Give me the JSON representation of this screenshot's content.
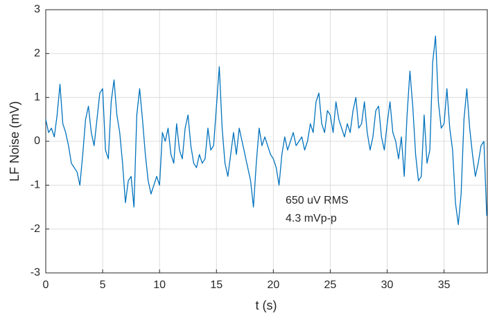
{
  "chart_data": {
    "type": "line",
    "xlabel": "t (s)",
    "ylabel": "LF Noise (mV)",
    "annotations": [
      "650 uV RMS",
      "4.3 mVp-p"
    ],
    "x": [
      0,
      0.25,
      0.5,
      0.75,
      1,
      1.25,
      1.5,
      1.75,
      2,
      2.25,
      2.5,
      2.75,
      3,
      3.25,
      3.5,
      3.75,
      4,
      4.25,
      4.5,
      4.75,
      5,
      5.25,
      5.5,
      5.75,
      6,
      6.25,
      6.5,
      6.75,
      7,
      7.25,
      7.5,
      7.75,
      8,
      8.25,
      8.5,
      8.75,
      9,
      9.25,
      9.5,
      9.75,
      10,
      10.25,
      10.5,
      10.75,
      11,
      11.25,
      11.5,
      11.75,
      12,
      12.25,
      12.5,
      12.75,
      13,
      13.25,
      13.5,
      13.75,
      14,
      14.25,
      14.5,
      14.75,
      15,
      15.25,
      15.5,
      15.75,
      16,
      16.25,
      16.5,
      16.75,
      17,
      17.25,
      17.5,
      17.75,
      18,
      18.25,
      18.5,
      18.75,
      19,
      19.25,
      19.5,
      19.75,
      20,
      20.25,
      20.5,
      20.75,
      21,
      21.25,
      21.5,
      21.75,
      22,
      22.25,
      22.5,
      22.75,
      23,
      23.25,
      23.5,
      23.75,
      24,
      24.25,
      24.5,
      24.75,
      25,
      25.25,
      25.5,
      25.75,
      26,
      26.25,
      26.5,
      26.75,
      27,
      27.25,
      27.5,
      27.75,
      28,
      28.25,
      28.5,
      28.75,
      29,
      29.25,
      29.5,
      29.75,
      30,
      30.25,
      30.5,
      30.75,
      31,
      31.25,
      31.5,
      31.75,
      32,
      32.25,
      32.5,
      32.75,
      33,
      33.25,
      33.5,
      33.75,
      34,
      34.25,
      34.5,
      34.75,
      35,
      35.25,
      35.5,
      35.75,
      36,
      36.25,
      36.5,
      36.75,
      37,
      37.25,
      37.5,
      37.75,
      38,
      38.25,
      38.5,
      38.75
    ],
    "series": [
      {
        "color": "#0072bd",
        "values": [
          0.5,
          0.2,
          0.3,
          0.1,
          0.6,
          1.3,
          0.4,
          0.2,
          -0.1,
          -0.5,
          -0.6,
          -0.7,
          -1.0,
          -0.3,
          0.5,
          0.8,
          0.2,
          -0.1,
          0.5,
          1.1,
          1.2,
          -0.2,
          -0.4,
          0.9,
          1.4,
          0.6,
          0.2,
          -0.5,
          -1.4,
          -0.9,
          -0.8,
          -1.5,
          0.6,
          1.2,
          0.5,
          -0.3,
          -0.9,
          -1.2,
          -1.0,
          -0.8,
          -1.0,
          0.2,
          0.0,
          0.3,
          -0.3,
          -0.5,
          0.4,
          -0.2,
          -0.4,
          0.3,
          0.6,
          -0.1,
          -0.5,
          -0.6,
          -0.3,
          -0.5,
          -0.4,
          0.3,
          -0.2,
          -0.1,
          0.8,
          1.7,
          0.3,
          -0.5,
          -0.8,
          -0.3,
          0.2,
          -0.3,
          0.3,
          0.0,
          -0.3,
          -0.6,
          -0.9,
          -1.5,
          -0.5,
          0.3,
          -0.1,
          0.1,
          -0.1,
          -0.3,
          -0.4,
          -0.6,
          -1.0,
          -0.3,
          0.1,
          -0.2,
          0.0,
          0.2,
          -0.1,
          0.0,
          0.1,
          -0.2,
          0.0,
          0.4,
          0.2,
          0.9,
          1.1,
          0.4,
          0.2,
          0.7,
          0.6,
          0.2,
          0.9,
          0.5,
          0.3,
          0.1,
          0.4,
          0.2,
          0.7,
          1.0,
          0.3,
          0.4,
          0.9,
          0.2,
          -0.2,
          0.1,
          0.7,
          0.8,
          0.1,
          -0.2,
          0.4,
          0.9,
          0.2,
          0.0,
          -0.4,
          0.1,
          -0.8,
          0.6,
          1.6,
          0.8,
          -0.3,
          -0.9,
          -0.8,
          0.6,
          -0.5,
          -0.2,
          1.8,
          2.4,
          0.9,
          0.3,
          0.4,
          1.2,
          0.3,
          -0.2,
          -1.4,
          -1.9,
          -1.2,
          0.5,
          1.2,
          0.3,
          -0.3,
          -0.8,
          -0.5,
          -0.1,
          0.0,
          -1.7
        ]
      }
    ],
    "xlim": [
      0,
      38.8
    ],
    "xticks": [
      0,
      5,
      10,
      15,
      20,
      25,
      30,
      35
    ],
    "ylim": [
      -3,
      3
    ],
    "yticks": [
      -3,
      -2,
      -1,
      0,
      1,
      2,
      3
    ],
    "grid": true
  }
}
